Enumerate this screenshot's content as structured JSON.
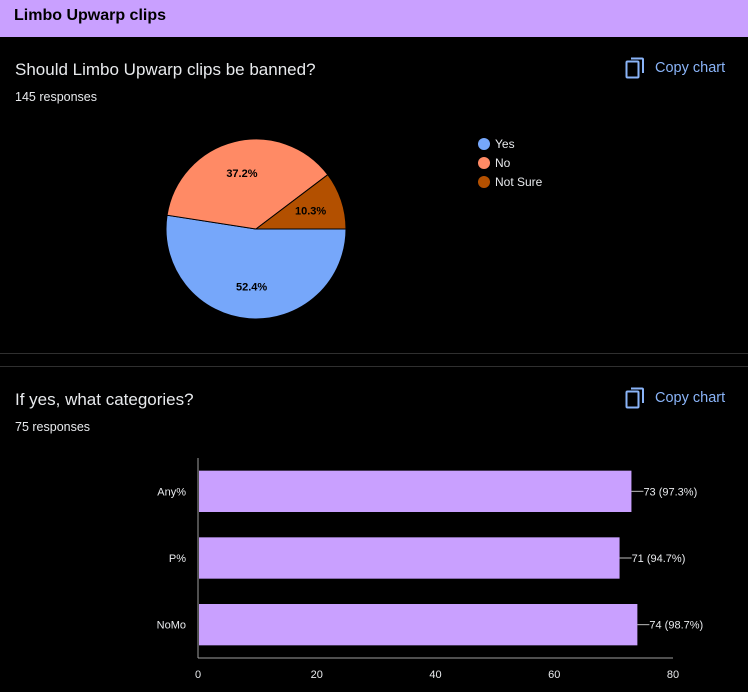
{
  "header": {
    "title": "Limbo Upwarp clips"
  },
  "questions": [
    {
      "title": "Should Limbo Upwarp clips be banned?",
      "responses": "145 responses",
      "copy_label": "Copy chart"
    },
    {
      "title": "If yes, what categories?",
      "responses": "75 responses",
      "copy_label": "Copy chart"
    }
  ],
  "colors": {
    "accent": "#8ab4f8",
    "header_bg": "#c9a0ff",
    "bar": "#c9a0ff"
  },
  "chart_data": [
    {
      "type": "pie",
      "categories": [
        "Yes",
        "No",
        "Not Sure"
      ],
      "values": [
        52.4,
        37.2,
        10.3
      ],
      "data_labels": [
        "52.4%",
        "37.2%",
        "10.3%"
      ],
      "colors": [
        "#76a7fa",
        "#ff8a65",
        "#b35000"
      ],
      "legend": "right"
    },
    {
      "type": "bar",
      "orientation": "horizontal",
      "categories": [
        "Any%",
        "P%",
        "NoMo"
      ],
      "values": [
        73,
        71,
        74
      ],
      "data_labels": [
        "73 (97.3%)",
        "71 (94.7%)",
        "74 (98.7%)"
      ],
      "xlim": [
        0,
        80
      ],
      "xticks": [
        "0",
        "20",
        "40",
        "60",
        "80"
      ],
      "color": "#c9a0ff",
      "grid": false
    }
  ]
}
